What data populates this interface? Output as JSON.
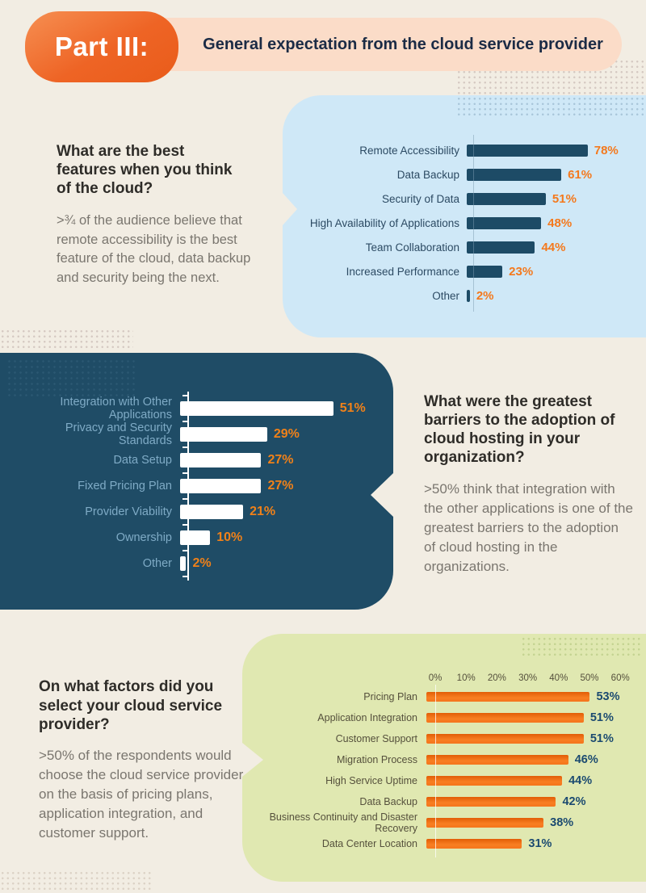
{
  "header": {
    "badge": "Part III:",
    "title": "General expectation from the cloud service provider"
  },
  "sections": [
    {
      "heading": "What are the best\nfeatures when you think\nof the cloud?",
      "body": ">¾ of the audience believe that\nremote accessibility is the best\nfeature of the cloud, data backup\nand security being the next."
    },
    {
      "heading": "What were the greatest\nbarriers to the adoption of\ncloud hosting in your\norganization?",
      "body": ">50%  think that integration with\nthe other applications is one of the\ngreatest barriers to the adoption\nof cloud hosting in the\norganizations."
    },
    {
      "heading": "On what factors did you\nselect your cloud service\nprovider?",
      "body": ">50% of the respondents would\nchoose the cloud service provider\non the basis of pricing plans,\napplication integration, and\ncustomer support."
    }
  ],
  "chart_data": [
    {
      "type": "bar",
      "orientation": "horizontal",
      "title": "Best features of the cloud",
      "categories": [
        "Remote Accessibility",
        "Data Backup",
        "Security of Data",
        "High Availability of Applications",
        "Team Collaboration",
        "Increased Performance",
        "Other"
      ],
      "values": [
        78,
        61,
        51,
        48,
        44,
        23,
        2
      ],
      "value_suffix": "%",
      "xlim": [
        0,
        100
      ],
      "grid": false,
      "bar_color": "#1d4b66",
      "label_color": "#2c4a63",
      "value_color": "#f4791d",
      "panel_color": "#cfe8f7"
    },
    {
      "type": "bar",
      "orientation": "horizontal",
      "title": "Greatest barriers to cloud hosting adoption",
      "categories": [
        "Integration with Other Applications",
        "Privacy and Security Standards",
        "Data Setup",
        "Fixed Pricing Plan",
        "Provider Viability",
        "Ownership",
        "Other"
      ],
      "values": [
        51,
        29,
        27,
        27,
        21,
        10,
        2
      ],
      "value_suffix": "%",
      "xlim": [
        0,
        60
      ],
      "grid": false,
      "bar_color": "#ffffff",
      "label_color": "#7fabc6",
      "value_color": "#f08119",
      "panel_color": "#1f4c66"
    },
    {
      "type": "bar",
      "orientation": "horizontal",
      "title": "Factors for selecting a cloud service provider",
      "categories": [
        "Pricing Plan",
        "Application Integration",
        "Customer Support",
        "Migration Process",
        "High Service Uptime",
        "Data Backup",
        "Business Continuity and Disaster Recovery",
        "Data Center Location"
      ],
      "values": [
        53,
        51,
        51,
        46,
        44,
        42,
        38,
        31
      ],
      "value_suffix": "%",
      "axis_ticks": [
        "0%",
        "10%",
        "20%",
        "30%",
        "40%",
        "50%",
        "60%"
      ],
      "xlim": [
        0,
        60
      ],
      "grid": false,
      "bar_color": "#f5741c",
      "label_color": "#55503c",
      "value_color": "#1b4a70",
      "panel_color": "#e0e8b1"
    }
  ],
  "colors": {
    "page_bg": "#f2ede3",
    "accent_orange": "#f4791d",
    "navy": "#1b2b45",
    "badge_gradient_start": "#f68f52",
    "badge_gradient_end": "#e95c1a",
    "header_band": "#fbdcc8"
  }
}
